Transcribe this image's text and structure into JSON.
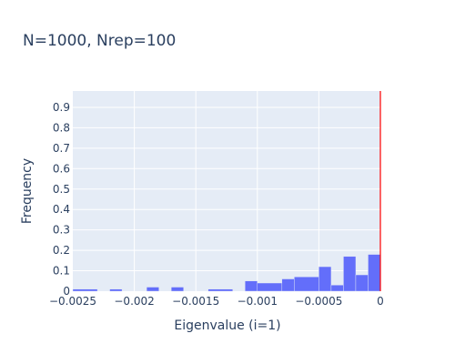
{
  "chart_data": {
    "type": "bar",
    "title": "N=1000, Nrep=100",
    "xlabel": "Eigenvalue (i=1)",
    "ylabel": "Frequency",
    "xlim": [
      -0.0025,
      0
    ],
    "ylim": [
      0,
      0.98
    ],
    "grid": true,
    "bin_width": 0.0001,
    "x_ticks": [
      {
        "value": -0.0025,
        "label": "−0.0025"
      },
      {
        "value": -0.002,
        "label": "−0.002"
      },
      {
        "value": -0.0015,
        "label": "−0.0015"
      },
      {
        "value": -0.001,
        "label": "−0.001"
      },
      {
        "value": -0.0005,
        "label": "−0.0005"
      },
      {
        "value": 0,
        "label": "0"
      }
    ],
    "y_ticks": [
      {
        "value": 0,
        "label": "0"
      },
      {
        "value": 0.1,
        "label": "0.1"
      },
      {
        "value": 0.2,
        "label": "0.2"
      },
      {
        "value": 0.3,
        "label": "0.3"
      },
      {
        "value": 0.4,
        "label": "0.4"
      },
      {
        "value": 0.5,
        "label": "0.5"
      },
      {
        "value": 0.6,
        "label": "0.6"
      },
      {
        "value": 0.7,
        "label": "0.7"
      },
      {
        "value": 0.8,
        "label": "0.8"
      },
      {
        "value": 0.9,
        "label": "0.9"
      }
    ],
    "bins": [
      {
        "x0": -0.0025,
        "x1": -0.0023,
        "y": 0.01
      },
      {
        "x0": -0.0022,
        "x1": -0.0021,
        "y": 0.01
      },
      {
        "x0": -0.0019,
        "x1": -0.0018,
        "y": 0.02
      },
      {
        "x0": -0.0017,
        "x1": -0.0016,
        "y": 0.02
      },
      {
        "x0": -0.0014,
        "x1": -0.0012,
        "y": 0.01
      },
      {
        "x0": -0.0011,
        "x1": -0.001,
        "y": 0.05
      },
      {
        "x0": -0.001,
        "x1": -0.0008,
        "y": 0.04
      },
      {
        "x0": -0.0008,
        "x1": -0.0007,
        "y": 0.06
      },
      {
        "x0": -0.0007,
        "x1": -0.0005,
        "y": 0.07
      },
      {
        "x0": -0.0005,
        "x1": -0.0004,
        "y": 0.12
      },
      {
        "x0": -0.0004,
        "x1": -0.0003,
        "y": 0.03
      },
      {
        "x0": -0.0003,
        "x1": -0.0002,
        "y": 0.17
      },
      {
        "x0": -0.0002,
        "x1": -0.0001,
        "y": 0.08
      },
      {
        "x0": -0.0001,
        "x1": 0,
        "y": 0.18
      }
    ],
    "reference_line": {
      "x": 0,
      "color": "#ff0000"
    }
  },
  "colors": {
    "plot_background": "#e5ecf6",
    "grid": "#ffffff",
    "bar": "#636efa",
    "text": "#2a3f5f"
  }
}
